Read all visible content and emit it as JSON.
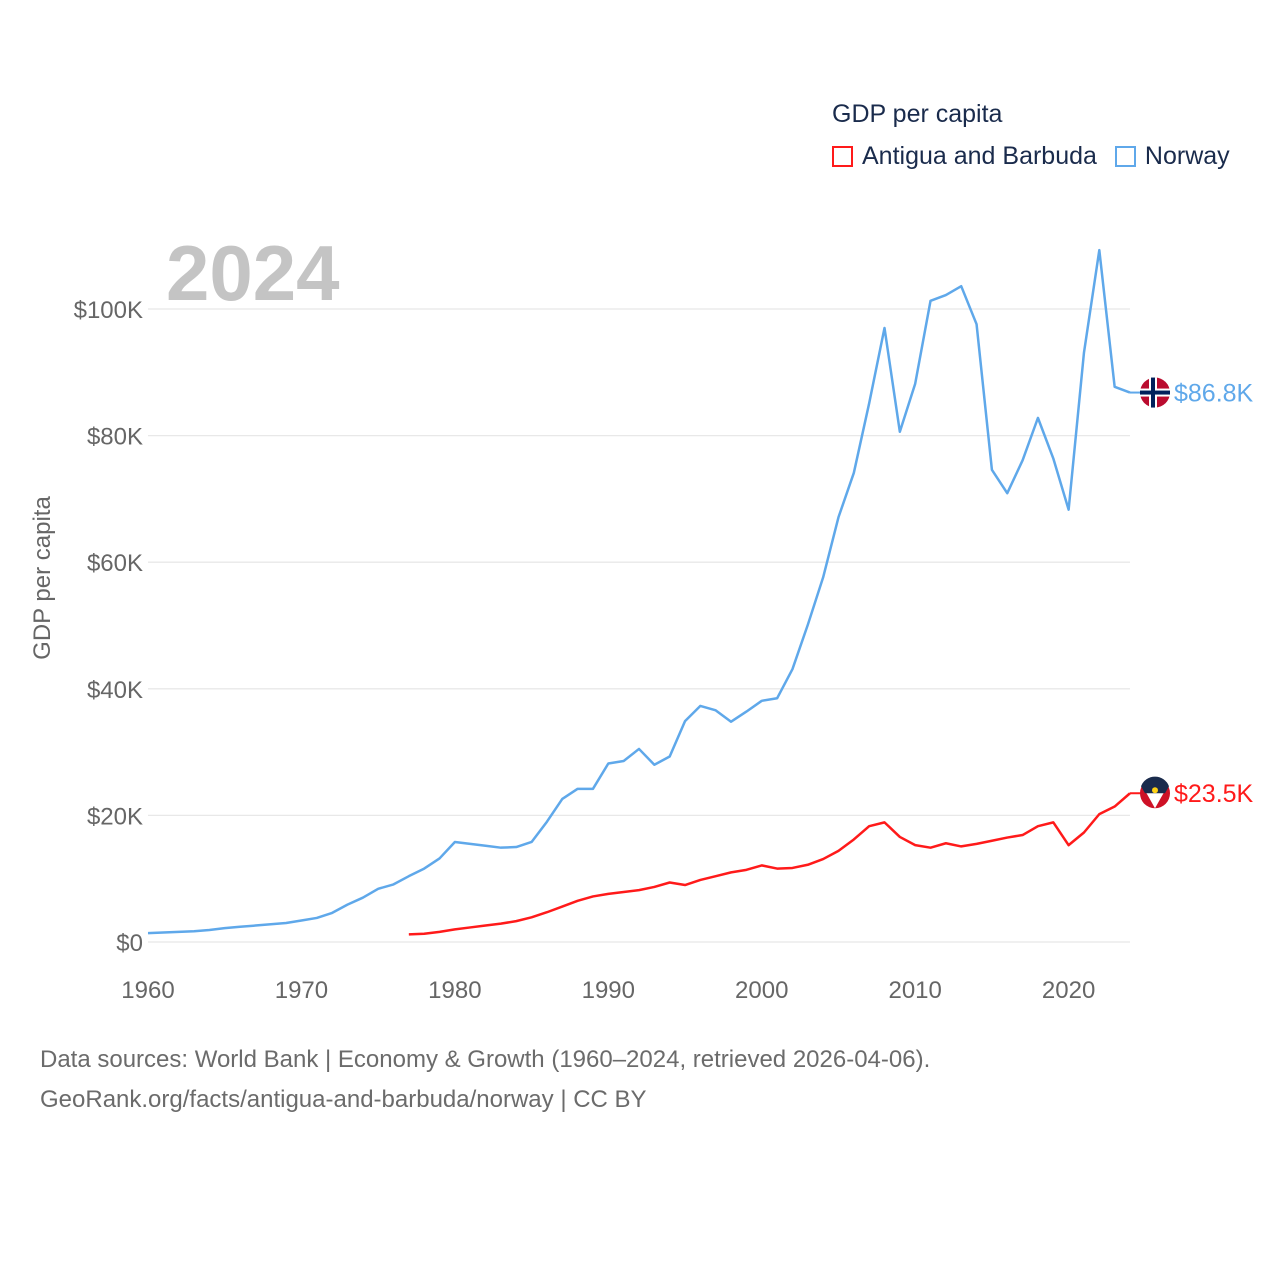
{
  "year_label": "2024",
  "legend": {
    "title": "GDP per capita",
    "items": [
      {
        "label": "Antigua and Barbuda",
        "color": "#ff1a1a"
      },
      {
        "label": "Norway",
        "color": "#5fa8ea"
      }
    ]
  },
  "footer": {
    "line1": "Data sources: World Bank | Economy & Growth (1960–2024, retrieved 2026-04-06).",
    "line2": "GeoRank.org/facts/antigua-and-barbuda/norway | CC BY"
  },
  "chart_data": {
    "type": "line",
    "title": "GDP per capita",
    "xlabel": "",
    "ylabel": "GDP per capita",
    "xlim": [
      1960,
      2024
    ],
    "ylim": [
      0,
      110
    ],
    "y_unit": "thousand USD",
    "x_ticks": [
      "1960",
      "1970",
      "1980",
      "1990",
      "2000",
      "2010",
      "2020"
    ],
    "y_ticks": [
      "$0",
      "$20K",
      "$40K",
      "$60K",
      "$80K",
      "$100K"
    ],
    "grid": true,
    "legend_position": "top-right",
    "series": [
      {
        "name": "Norway",
        "color": "#5fa8ea",
        "start_year": 1960,
        "end_label": "$86.8K",
        "values": [
          1.4,
          1.5,
          1.6,
          1.7,
          1.9,
          2.2,
          2.4,
          2.6,
          2.8,
          3.0,
          3.4,
          3.8,
          4.6,
          5.9,
          7.0,
          8.4,
          9.1,
          10.4,
          11.6,
          13.2,
          15.8,
          15.5,
          15.2,
          14.9,
          15.0,
          15.8,
          19.0,
          22.6,
          24.2,
          24.2,
          28.2,
          28.6,
          30.5,
          28.0,
          29.3,
          34.9,
          37.3,
          36.6,
          34.8,
          36.4,
          38.1,
          38.5,
          43.1,
          50.1,
          57.6,
          67.1,
          74.1,
          85.1,
          97.0,
          80.6,
          88.2,
          101.3,
          102.2,
          103.6,
          97.6,
          74.6,
          70.9,
          76.1,
          82.8,
          76.4,
          68.3,
          93.1,
          109.3,
          87.7,
          86.8
        ]
      },
      {
        "name": "Antigua and Barbuda",
        "color": "#ff1a1a",
        "start_year": 1977,
        "end_label": "$23.5K",
        "values": [
          1.2,
          1.3,
          1.6,
          2.0,
          2.3,
          2.6,
          2.9,
          3.3,
          3.9,
          4.7,
          5.6,
          6.5,
          7.2,
          7.6,
          7.9,
          8.2,
          8.7,
          9.4,
          9.0,
          9.8,
          10.4,
          11.0,
          11.4,
          12.1,
          11.6,
          11.7,
          12.2,
          13.1,
          14.4,
          16.2,
          18.3,
          18.9,
          16.6,
          15.3,
          14.9,
          15.6,
          15.1,
          15.5,
          16.0,
          16.5,
          16.9,
          18.3,
          18.9,
          15.3,
          17.3,
          20.2,
          21.4,
          23.5
        ]
      }
    ]
  }
}
